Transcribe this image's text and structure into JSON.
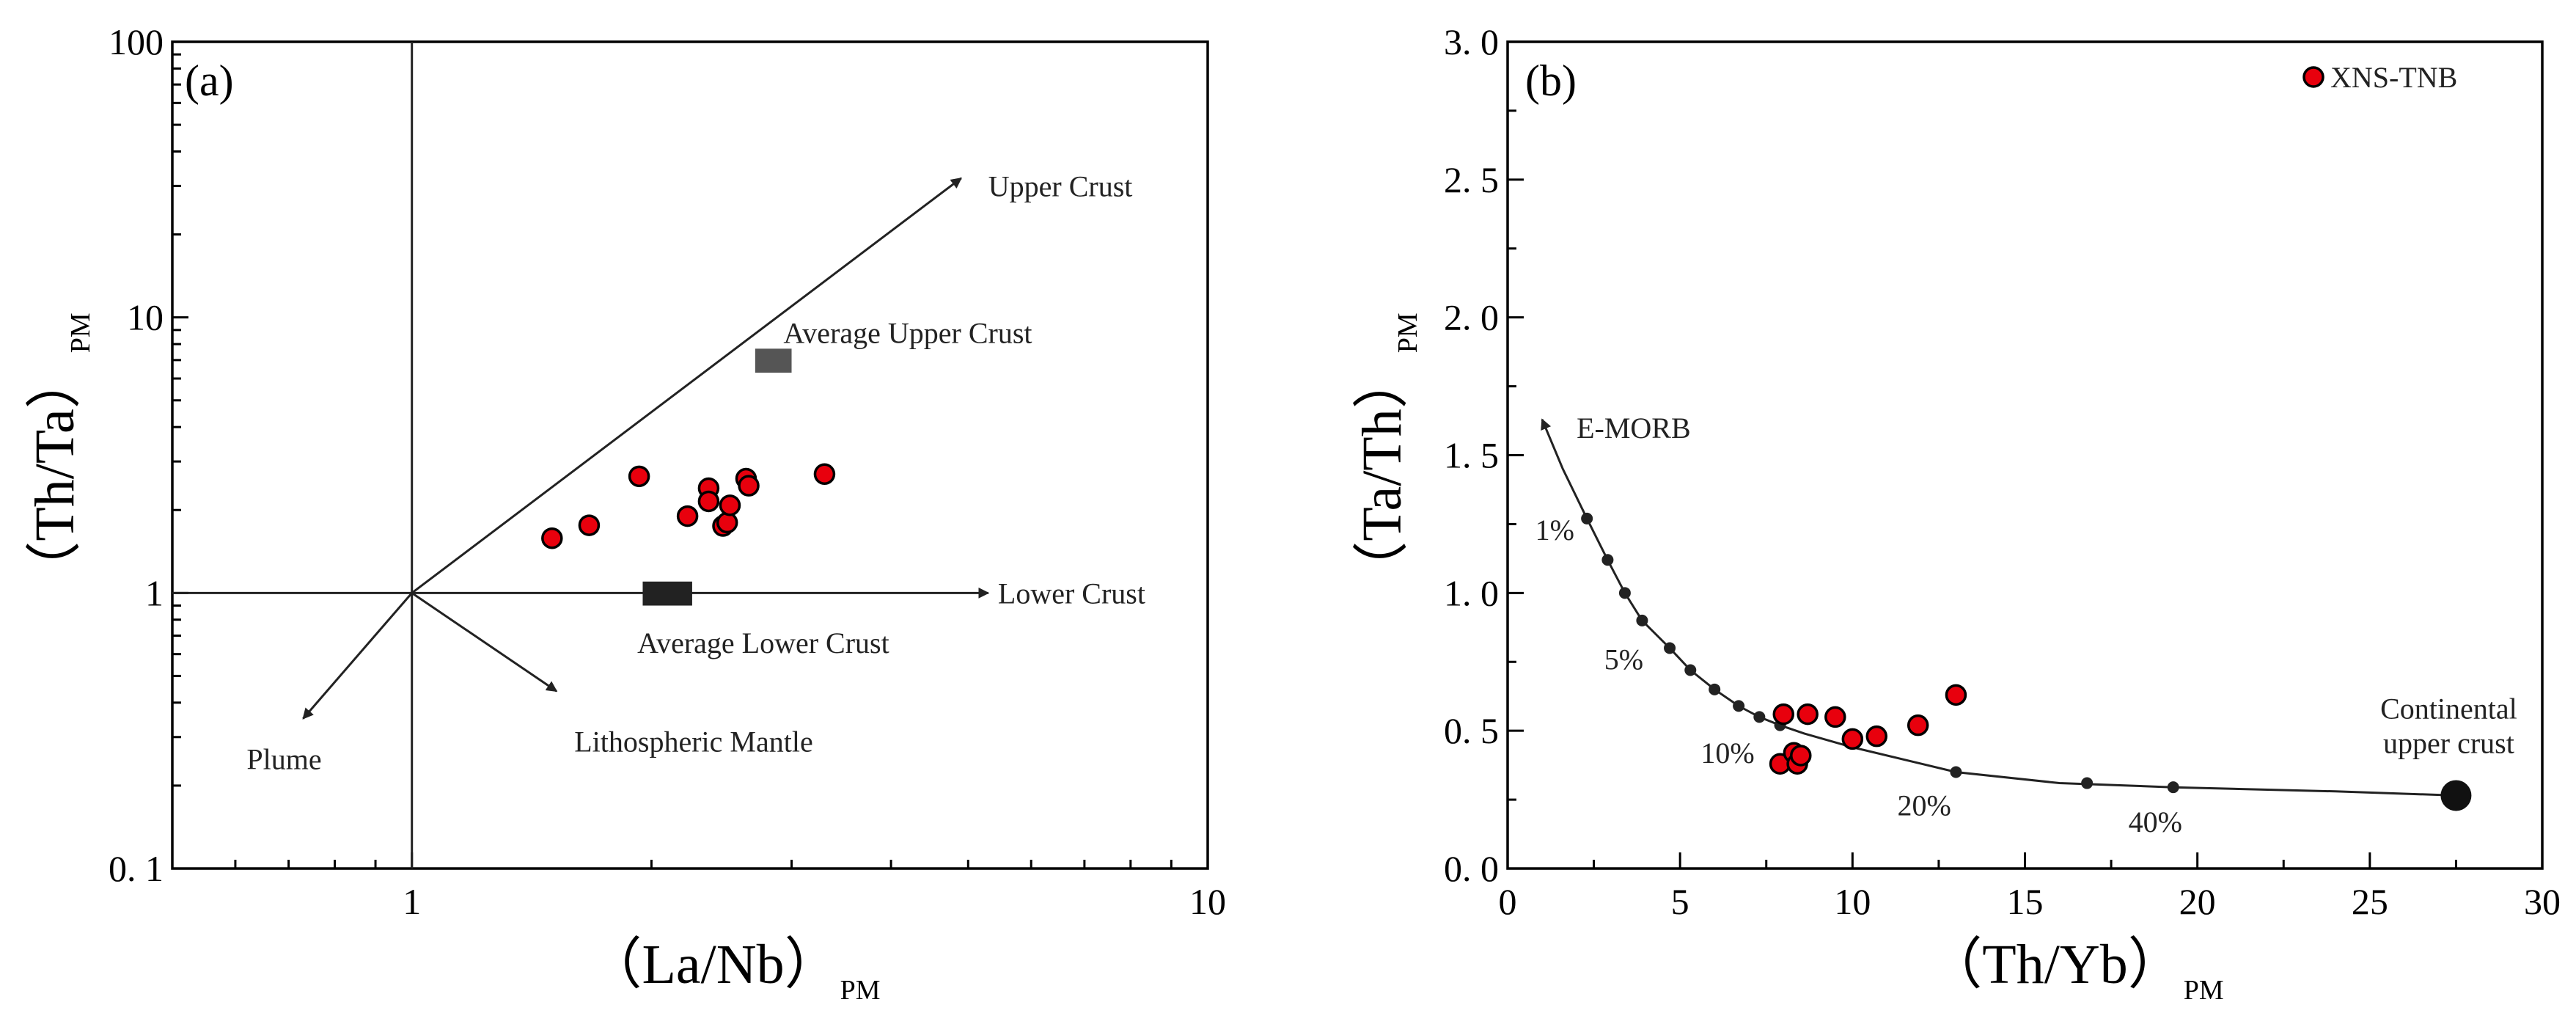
{
  "chart_data": [
    {
      "type": "scatter",
      "panel_label": "(a)",
      "xscale": "log",
      "yscale": "log",
      "xlim": [
        0.5,
        10
      ],
      "ylim": [
        0.1,
        100
      ],
      "xlabel_main": "（La/Nb）",
      "xlabel_sub": "PM",
      "ylabel_main": "（Th/Ta）",
      "ylabel_sub": "PM",
      "x_ticks": [
        {
          "v": 1,
          "label": "1"
        },
        {
          "v": 10,
          "label": "10"
        }
      ],
      "y_ticks": [
        {
          "v": 0.1,
          "label": "0. 1"
        },
        {
          "v": 1,
          "label": "1"
        },
        {
          "v": 10,
          "label": "10"
        },
        {
          "v": 100,
          "label": "100"
        }
      ],
      "reference_lines": {
        "x": 1,
        "y": 1
      },
      "vectors": [
        {
          "label": "Upper Crust",
          "from": [
            1,
            1
          ],
          "to": [
            4.9,
            32
          ]
        },
        {
          "label": "Lower Crust",
          "from": [
            1,
            1
          ],
          "to": [
            5.3,
            1
          ]
        },
        {
          "label": "Plume",
          "from": [
            1,
            1
          ],
          "to": [
            0.73,
            0.35
          ]
        },
        {
          "label": "Lithospheric Mantle",
          "from": [
            1,
            1
          ],
          "to": [
            1.52,
            0.44
          ]
        }
      ],
      "reference_boxes": [
        {
          "label": "Average Upper Crust",
          "x": [
            2.7,
            3.0
          ],
          "y": [
            6.3,
            7.7
          ],
          "color": "#555555"
        },
        {
          "label": "Average Lower Crust",
          "x": [
            1.95,
            2.25
          ],
          "y": [
            0.9,
            1.1
          ],
          "color": "#222222"
        }
      ],
      "annotations": [
        {
          "text": "Upper Crust",
          "x": 5.3,
          "y": 30
        },
        {
          "text": "Average Upper Crust",
          "x": 2.93,
          "y": 8.8
        },
        {
          "text": "Lower Crust",
          "x": 5.45,
          "y": 1.0
        },
        {
          "text": "Average Lower Crust",
          "x": 1.92,
          "y": 0.66
        },
        {
          "text": "Plume",
          "x": 0.62,
          "y": 0.25
        },
        {
          "text": "Lithospheric Mantle",
          "x": 1.6,
          "y": 0.29
        }
      ],
      "series": [
        {
          "name": "XNS-TNB",
          "x": [
            1.5,
            1.67,
            1.93,
            2.22,
            2.36,
            2.36,
            2.46,
            2.49,
            2.51,
            2.63,
            2.65,
            3.3
          ],
          "y": [
            1.58,
            1.76,
            2.65,
            1.9,
            2.4,
            2.15,
            1.75,
            1.8,
            2.08,
            2.6,
            2.45,
            2.7
          ]
        }
      ]
    },
    {
      "type": "line",
      "panel_label": "(b)",
      "xlim": [
        0,
        30
      ],
      "ylim": [
        0,
        3.0
      ],
      "xlabel_main": "（Th/Yb）",
      "xlabel_sub": "PM",
      "ylabel_main": "（Ta/Th）",
      "ylabel_sub": "PM",
      "x_ticks": [
        {
          "v": 0,
          "label": "0"
        },
        {
          "v": 5,
          "label": "5"
        },
        {
          "v": 10,
          "label": "10"
        },
        {
          "v": 15,
          "label": "15"
        },
        {
          "v": 20,
          "label": "20"
        },
        {
          "v": 25,
          "label": "25"
        },
        {
          "v": 30,
          "label": "30"
        }
      ],
      "y_ticks": [
        {
          "v": 0,
          "label": "0. 0"
        },
        {
          "v": 0.5,
          "label": "0. 5"
        },
        {
          "v": 1,
          "label": "1. 0"
        },
        {
          "v": 1.5,
          "label": "1. 5"
        },
        {
          "v": 2,
          "label": "2. 0"
        },
        {
          "v": 2.5,
          "label": "2. 5"
        },
        {
          "v": 3,
          "label": "3. 0"
        }
      ],
      "mixing_curve": {
        "x": [
          1.0,
          1.6,
          2.3,
          2.9,
          3.4,
          3.9,
          4.7,
          5.3,
          6.0,
          6.7,
          7.3,
          7.9,
          8.6,
          10.0,
          12.0,
          13.0,
          16.0,
          19.3,
          24.0,
          27.5
        ],
        "y": [
          1.63,
          1.45,
          1.27,
          1.12,
          1.0,
          0.9,
          0.8,
          0.72,
          0.65,
          0.59,
          0.55,
          0.52,
          0.49,
          0.44,
          0.38,
          0.35,
          0.31,
          0.295,
          0.28,
          0.265
        ]
      },
      "curve_ticks": {
        "x": [
          2.3,
          2.9,
          3.4,
          3.9,
          4.7,
          5.3,
          6.0,
          6.7,
          7.3,
          7.9,
          13.0,
          16.8,
          19.3
        ],
        "y": [
          1.27,
          1.12,
          1.0,
          0.9,
          0.8,
          0.72,
          0.65,
          0.59,
          0.55,
          0.52,
          0.35,
          0.31,
          0.295
        ]
      },
      "endmember": {
        "label_line1": "Continental",
        "label_line2": "upper crust",
        "x": 27.5,
        "y": 0.265
      },
      "annotations": [
        {
          "text": "E-MORB",
          "x": 2.0,
          "y": 1.6
        },
        {
          "text": "1%",
          "x": 0.8,
          "y": 1.23
        },
        {
          "text": "5%",
          "x": 2.8,
          "y": 0.76
        },
        {
          "text": "10%",
          "x": 5.6,
          "y": 0.42
        },
        {
          "text": "20%",
          "x": 11.3,
          "y": 0.23
        },
        {
          "text": "40%",
          "x": 18.0,
          "y": 0.17
        }
      ],
      "series": [
        {
          "name": "XNS-TNB",
          "x": [
            7.9,
            8.0,
            8.3,
            8.4,
            8.5,
            8.7,
            9.5,
            10.0,
            10.7,
            11.9,
            13.0
          ],
          "y": [
            0.38,
            0.56,
            0.42,
            0.38,
            0.41,
            0.56,
            0.55,
            0.47,
            0.48,
            0.52,
            0.63
          ]
        }
      ],
      "legend": {
        "entries": [
          "XNS-TNB"
        ],
        "placement": "top-right"
      }
    }
  ]
}
